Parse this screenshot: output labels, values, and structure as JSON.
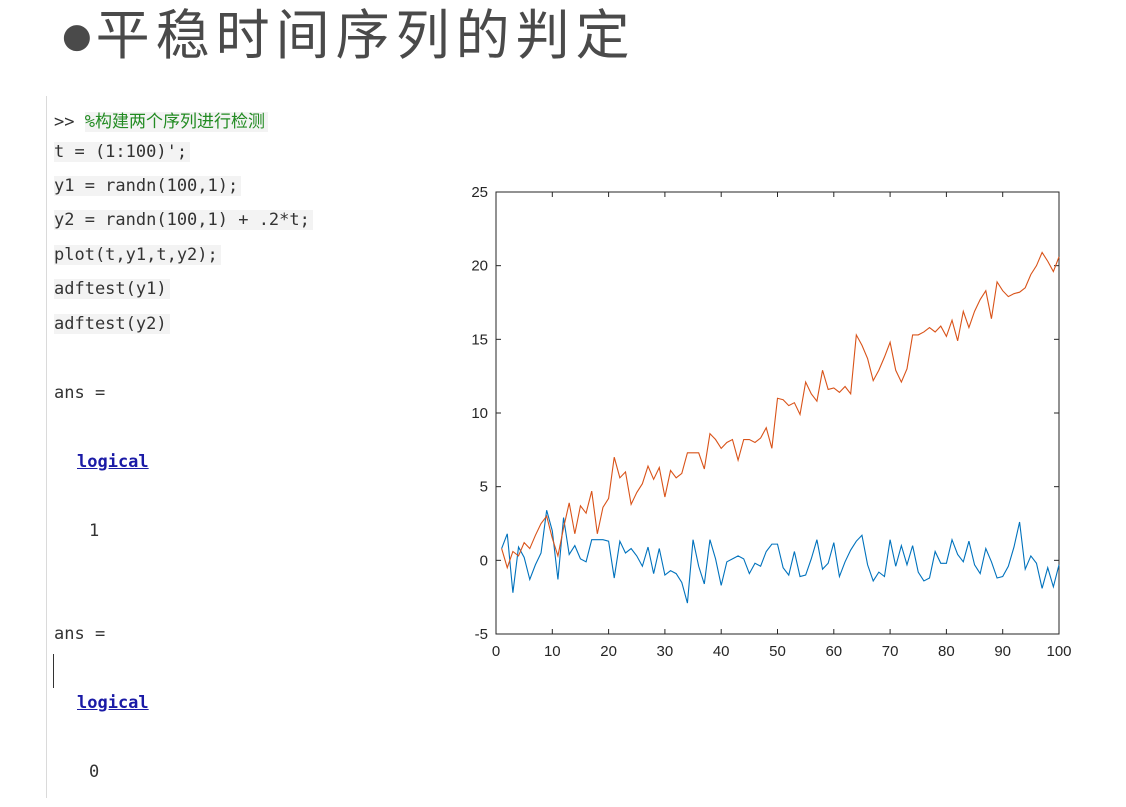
{
  "slide": {
    "bullet": "●",
    "title": "平稳时间序列的判定"
  },
  "console": {
    "prompt": ">>",
    "comment": "%构建两个序列进行检测",
    "code": [
      "t = (1:100)';",
      "y1 = randn(100,1);",
      "y2 = randn(100,1) + .2*t;",
      "plot(t,y1,t,y2);",
      "adftest(y1)",
      "adftest(y2)"
    ],
    "outputs": [
      {
        "label": "ans =",
        "type": "logical",
        "value": "1"
      },
      {
        "label": "ans =",
        "type": "logical",
        "value": "0"
      }
    ]
  },
  "chart_data": {
    "type": "line",
    "title": "",
    "xlabel": "",
    "ylabel": "",
    "xlim": [
      0,
      100
    ],
    "ylim": [
      -5,
      25
    ],
    "xticks": [
      0,
      10,
      20,
      30,
      40,
      50,
      60,
      70,
      80,
      90,
      100
    ],
    "yticks": [
      -5,
      0,
      5,
      10,
      15,
      20,
      25
    ],
    "grid": false,
    "x": [
      1,
      2,
      3,
      4,
      5,
      6,
      7,
      8,
      9,
      10,
      11,
      12,
      13,
      14,
      15,
      16,
      17,
      18,
      19,
      20,
      21,
      22,
      23,
      24,
      25,
      26,
      27,
      28,
      29,
      30,
      31,
      32,
      33,
      34,
      35,
      36,
      37,
      38,
      39,
      40,
      41,
      42,
      43,
      44,
      45,
      46,
      47,
      48,
      49,
      50,
      51,
      52,
      53,
      54,
      55,
      56,
      57,
      58,
      59,
      60,
      61,
      62,
      63,
      64,
      65,
      66,
      67,
      68,
      69,
      70,
      71,
      72,
      73,
      74,
      75,
      76,
      77,
      78,
      79,
      80,
      81,
      82,
      83,
      84,
      85,
      86,
      87,
      88,
      89,
      90,
      91,
      92,
      93,
      94,
      95,
      96,
      97,
      98,
      99,
      100
    ],
    "series": [
      {
        "color": "#0072BD",
        "values": [
          0.8,
          1.8,
          -2.2,
          0.9,
          0.2,
          -1.3,
          -0.3,
          0.5,
          3.4,
          2.0,
          -1.3,
          2.9,
          0.4,
          1.0,
          0.1,
          -0.1,
          1.4,
          1.4,
          1.4,
          1.3,
          -1.2,
          1.3,
          0.5,
          0.8,
          0.3,
          -0.4,
          0.9,
          -0.9,
          0.8,
          -1.0,
          -0.7,
          -0.9,
          -1.5,
          -2.9,
          1.4,
          -0.4,
          -1.6,
          1.4,
          0.1,
          -1.7,
          -0.1,
          0.1,
          0.3,
          0.1,
          -0.9,
          -0.2,
          -0.4,
          0.6,
          1.1,
          1.1,
          -0.5,
          -1.0,
          0.6,
          -1.1,
          -1.0,
          0.1,
          1.4,
          -0.6,
          -0.2,
          1.2,
          -1.1,
          -0.1,
          0.7,
          1.3,
          1.7,
          -0.3,
          -1.4,
          -0.8,
          -1.1,
          1.4,
          -0.4,
          1.0,
          -0.3,
          1.0,
          -0.8,
          -1.4,
          -1.2,
          0.6,
          -0.2,
          -0.2,
          1.4,
          0.4,
          -0.1,
          1.3,
          -0.3,
          -0.9,
          0.8,
          -0.1,
          -1.2,
          -1.1,
          -0.4,
          0.9,
          2.6,
          -0.6,
          0.3,
          -0.2,
          -1.9,
          -0.5,
          -1.8,
          -0.3
        ]
      },
      {
        "color": "#D95319",
        "values": [
          0.8,
          -0.5,
          0.6,
          0.3,
          1.2,
          0.8,
          1.7,
          2.5,
          3.0,
          1.5,
          0.3,
          2.2,
          3.9,
          1.8,
          3.7,
          3.2,
          4.7,
          1.8,
          3.6,
          4.2,
          7.0,
          5.6,
          6.0,
          3.8,
          4.6,
          5.2,
          6.4,
          5.5,
          6.3,
          4.3,
          6.1,
          5.6,
          5.9,
          7.3,
          7.3,
          7.3,
          6.2,
          8.6,
          8.2,
          7.6,
          8.0,
          8.2,
          6.8,
          8.2,
          8.2,
          8.0,
          8.3,
          9.0,
          7.6,
          11.0,
          10.9,
          10.5,
          10.7,
          9.9,
          12.1,
          11.3,
          10.8,
          12.9,
          11.6,
          11.7,
          11.4,
          11.8,
          11.3,
          15.3,
          14.6,
          13.7,
          12.2,
          12.9,
          13.8,
          14.8,
          12.9,
          12.1,
          13.0,
          15.3,
          15.3,
          15.5,
          15.8,
          15.5,
          15.9,
          15.2,
          16.3,
          14.9,
          16.9,
          15.8,
          16.9,
          17.7,
          18.3,
          16.4,
          18.9,
          18.3,
          17.9,
          18.1,
          18.2,
          18.5,
          19.4,
          20.0,
          20.9,
          20.3,
          19.6,
          20.6
        ]
      }
    ]
  }
}
